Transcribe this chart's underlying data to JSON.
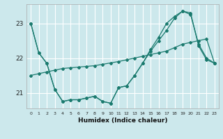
{
  "title": "",
  "xlabel": "Humidex (Indice chaleur)",
  "bg_color": "#cce8ec",
  "grid_color": "#ffffff",
  "line_color": "#1a7a6e",
  "x_ticks": [
    0,
    1,
    2,
    3,
    4,
    5,
    6,
    7,
    8,
    9,
    10,
    11,
    12,
    13,
    14,
    15,
    16,
    17,
    18,
    19,
    20,
    21,
    22,
    23
  ],
  "y_ticks": [
    21,
    22,
    23
  ],
  "ylim": [
    20.55,
    23.55
  ],
  "xlim": [
    -0.5,
    23.5
  ],
  "series1_x": [
    0,
    1,
    2,
    3,
    4,
    5,
    6,
    7,
    8,
    9,
    10,
    11,
    12,
    13,
    14,
    15,
    16,
    17,
    18,
    19,
    20,
    21,
    22,
    23
  ],
  "series1_y": [
    23.0,
    22.15,
    21.85,
    21.1,
    20.75,
    20.8,
    20.8,
    20.85,
    20.9,
    20.75,
    20.7,
    21.15,
    21.2,
    21.5,
    21.85,
    22.2,
    22.5,
    22.8,
    23.15,
    23.35,
    23.25,
    22.4,
    22.0,
    21.85
  ],
  "series2_x": [
    0,
    1,
    2,
    3,
    4,
    5,
    6,
    7,
    8,
    9,
    10,
    11,
    12,
    13,
    14,
    15,
    16,
    17,
    18,
    19,
    20,
    21,
    22,
    23
  ],
  "series2_y": [
    23.0,
    22.15,
    21.85,
    21.1,
    20.75,
    20.8,
    20.8,
    20.85,
    20.9,
    20.75,
    20.7,
    21.15,
    21.2,
    21.5,
    21.85,
    22.25,
    22.6,
    23.0,
    23.2,
    23.35,
    23.3,
    22.35,
    21.95,
    21.85
  ],
  "series3_x": [
    0,
    1,
    2,
    3,
    4,
    5,
    6,
    7,
    8,
    9,
    10,
    11,
    12,
    13,
    14,
    15,
    16,
    17,
    18,
    19,
    20,
    21,
    22,
    23
  ],
  "series3_y": [
    21.5,
    21.55,
    21.6,
    21.65,
    21.7,
    21.72,
    21.74,
    21.76,
    21.78,
    21.82,
    21.86,
    21.9,
    21.95,
    22.0,
    22.05,
    22.1,
    22.15,
    22.2,
    22.3,
    22.4,
    22.45,
    22.5,
    22.55,
    21.85
  ]
}
